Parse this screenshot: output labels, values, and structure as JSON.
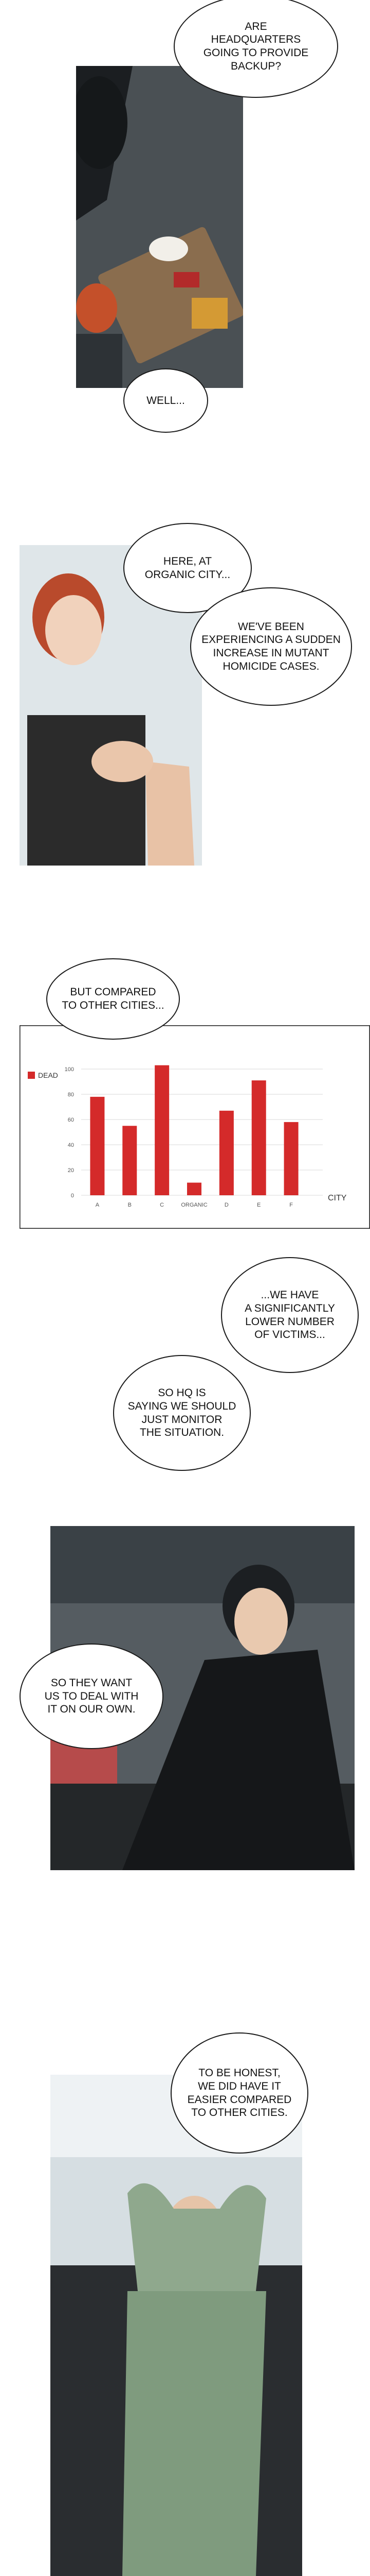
{
  "bubbles": {
    "b1": "ARE\nHEADQUARTERS\nGOING TO PROVIDE\nBACKUP?",
    "b2": "WELL...",
    "b3": "HERE, AT\nORGANIC CITY...",
    "b4": "WE'VE BEEN\nEXPERIENCING A SUDDEN\nINCREASE IN MUTANT\nHOMICIDE CASES.",
    "b5": "BUT COMPARED\nTO OTHER CITIES...",
    "b6": "...WE HAVE\nA SIGNIFICANTLY\nLOWER NUMBER\nOF VICTIMS...",
    "b7": "SO HQ IS\nSAYING WE SHOULD\nJUST MONITOR\nTHE SITUATION.",
    "b8": "SO THEY WANT\nUS TO DEAL WITH\nIT ON OUR OWN.",
    "b9": "TO BE HONEST,\nWE DID HAVE IT\nEASIER COMPARED\nTO OTHER CITIES."
  },
  "colors": {
    "bar": "#d42a2a",
    "ink": "#1a1a1a"
  },
  "chart_data": {
    "type": "bar",
    "categories": [
      "A",
      "B",
      "C",
      "ORGANIC",
      "D",
      "E",
      "F"
    ],
    "series": [
      {
        "name": "DEAD",
        "values": [
          78,
          55,
          103,
          10,
          67,
          91,
          58
        ]
      }
    ],
    "ylim": [
      0,
      100
    ],
    "yticks": [
      0,
      20,
      40,
      60,
      80,
      100
    ],
    "xlabel": "CITY",
    "legend": "left",
    "grid": true
  }
}
